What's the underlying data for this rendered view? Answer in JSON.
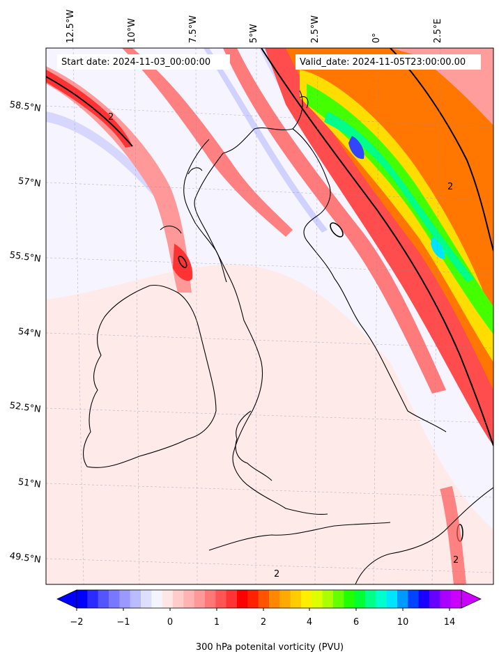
{
  "header": {
    "start_date": "Start date: 2024-11-03_00:00:00",
    "valid_date": "Valid_date: 2024-11-05T23:00:00.00"
  },
  "map": {
    "lon_labels": [
      "12.5°W",
      "10°W",
      "7.5°W",
      "5°W",
      "2.5°W",
      "0°",
      "2.5°E"
    ],
    "lat_labels": [
      "58.5°N",
      "57°N",
      "55.5°N",
      "54°N",
      "52.5°N",
      "51°N",
      "49.5°N"
    ],
    "contour_label": "2"
  },
  "colorbar": {
    "label": "300 hPa potenital vorticity (PVU)",
    "tick_labels": [
      "−2",
      "−1",
      "0",
      "1",
      "2",
      "4",
      "6",
      "10",
      "14"
    ],
    "colors": [
      "#0000ff",
      "#2b2bff",
      "#5555ff",
      "#7777ff",
      "#9999ff",
      "#bbbbff",
      "#dedeff",
      "#f4f4ff",
      "#ffe6e6",
      "#ffcccc",
      "#ffb3b3",
      "#ff9999",
      "#ff7777",
      "#ff5555",
      "#ff3333",
      "#ff0000",
      "#ff2200",
      "#ff5500",
      "#ff8800",
      "#ffaa00",
      "#ffcc00",
      "#ffee00",
      "#ddff00",
      "#aaff00",
      "#66ff00",
      "#22ff00",
      "#00ff33",
      "#00ff88",
      "#00ffcc",
      "#00e5ff",
      "#0099ff",
      "#0044ff",
      "#1a00ff",
      "#6600ff",
      "#aa00ff",
      "#cc00ff"
    ]
  }
}
